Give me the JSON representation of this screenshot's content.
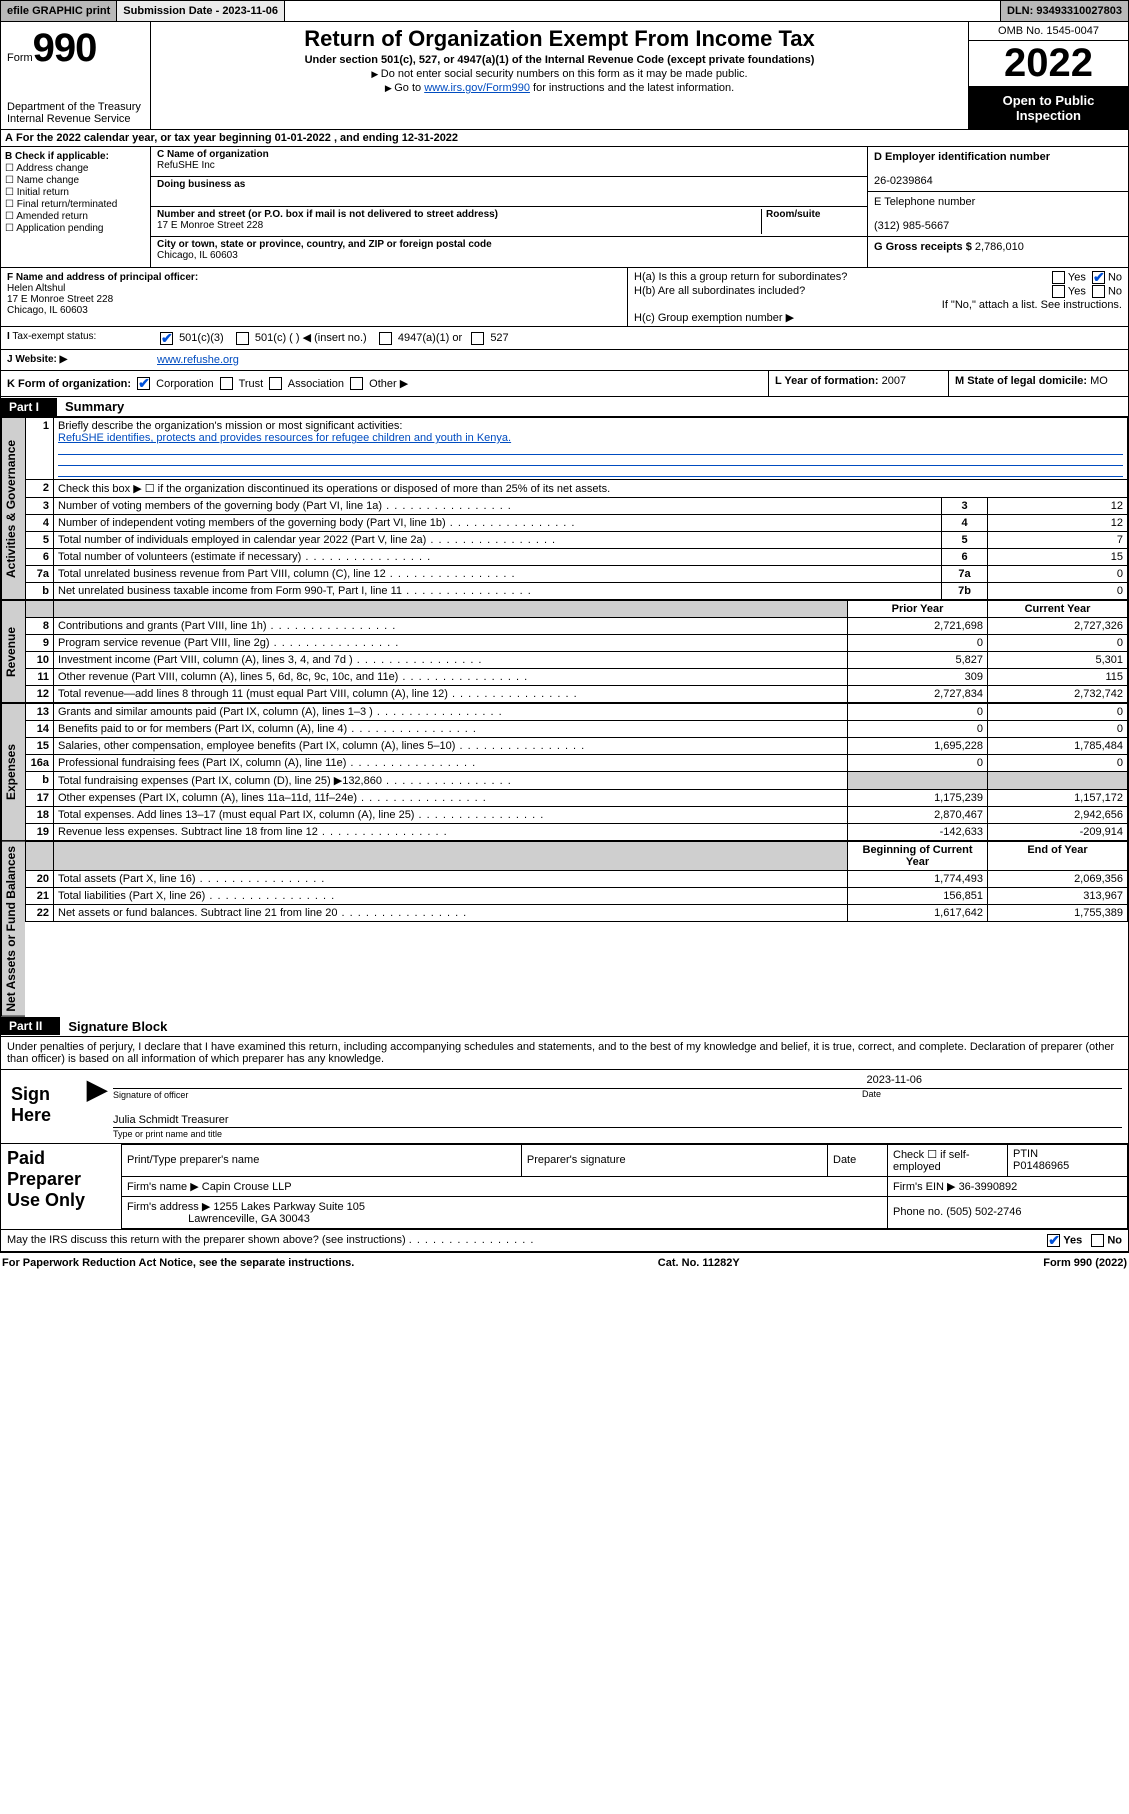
{
  "topbar": {
    "efile": "efile GRAPHIC print",
    "subdate_label": "Submission Date - 2023-11-06",
    "dln": "DLN: 93493310027803"
  },
  "header": {
    "form_prefix": "Form",
    "form_num": "990",
    "dept": "Department of the Treasury",
    "irs": "Internal Revenue Service",
    "title": "Return of Organization Exempt From Income Tax",
    "sub1": "Under section 501(c), 527, or 4947(a)(1) of the Internal Revenue Code (except private foundations)",
    "sub2": "Do not enter social security numbers on this form as it may be made public.",
    "sub3_pre": "Go to ",
    "sub3_link": "www.irs.gov/Form990",
    "sub3_post": " for instructions and the latest information.",
    "omb": "OMB No. 1545-0047",
    "year": "2022",
    "open": "Open to Public Inspection"
  },
  "A": {
    "text": "For the 2022 calendar year, or tax year beginning 01-01-2022   , and ending 12-31-2022"
  },
  "B": {
    "label": "B Check if applicable:",
    "items": [
      "Address change",
      "Name change",
      "Initial return",
      "Final return/terminated",
      "Amended return",
      "Application pending"
    ]
  },
  "C": {
    "name_lab": "C Name of organization",
    "name": "RefuSHE Inc",
    "dba_lab": "Doing business as",
    "addr_lab": "Number and street (or P.O. box if mail is not delivered to street address)",
    "room_lab": "Room/suite",
    "addr": "17 E Monroe Street 228",
    "city_lab": "City or town, state or province, country, and ZIP or foreign postal code",
    "city": "Chicago, IL  60603"
  },
  "D": {
    "lab": "D Employer identification number",
    "val": "26-0239864"
  },
  "E": {
    "lab": "E Telephone number",
    "val": "(312) 985-5667"
  },
  "G": {
    "lab": "G Gross receipts $",
    "val": "2,786,010"
  },
  "F": {
    "lab": "F  Name and address of principal officer:",
    "name": "Helen Altshul",
    "addr1": "17 E Monroe Street 228",
    "addr2": "Chicago, IL  60603"
  },
  "H": {
    "a_lab": "H(a)  Is this a group return for subordinates?",
    "b_lab": "H(b)  Are all subordinates included?",
    "b_note": "If \"No,\" attach a list. See instructions.",
    "c_lab": "H(c)  Group exemption number ▶",
    "yes": "Yes",
    "no": "No"
  },
  "I": {
    "lab": "Tax-exempt status:",
    "opt1": "501(c)(3)",
    "opt2": "501(c) (  ) ◀ (insert no.)",
    "opt3": "4947(a)(1) or",
    "opt4": "527"
  },
  "J": {
    "lab": "Website: ▶",
    "val": "www.refushe.org"
  },
  "K": {
    "lab": "K Form of organization:",
    "o1": "Corporation",
    "o2": "Trust",
    "o3": "Association",
    "o4": "Other ▶"
  },
  "L": {
    "lab": "L Year of formation:",
    "val": "2007"
  },
  "M": {
    "lab": "M State of legal domicile:",
    "val": "MO"
  },
  "part1": {
    "bar": "Part I",
    "title": "Summary",
    "l1_lab": "Briefly describe the organization's mission or most significant activities:",
    "l1_val": "RefuSHE identifies, protects and provides resources for refugee children and youth in Kenya.",
    "l2": "Check this box ▶ ☐  if the organization discontinued its operations or disposed of more than 25% of its net assets.",
    "rows_ag": [
      {
        "n": "3",
        "t": "Number of voting members of the governing body (Part VI, line 1a)",
        "c": "3",
        "v": "12"
      },
      {
        "n": "4",
        "t": "Number of independent voting members of the governing body (Part VI, line 1b)",
        "c": "4",
        "v": "12"
      },
      {
        "n": "5",
        "t": "Total number of individuals employed in calendar year 2022 (Part V, line 2a)",
        "c": "5",
        "v": "7"
      },
      {
        "n": "6",
        "t": "Total number of volunteers (estimate if necessary)",
        "c": "6",
        "v": "15"
      },
      {
        "n": "7a",
        "t": "Total unrelated business revenue from Part VIII, column (C), line 12",
        "c": "7a",
        "v": "0"
      },
      {
        "n": "b",
        "t": "Net unrelated business taxable income from Form 990-T, Part I, line 11",
        "c": "7b",
        "v": "0"
      }
    ],
    "hdr_prior": "Prior Year",
    "hdr_curr": "Current Year",
    "rows_rev": [
      {
        "n": "8",
        "t": "Contributions and grants (Part VIII, line 1h)",
        "p": "2,721,698",
        "c": "2,727,326"
      },
      {
        "n": "9",
        "t": "Program service revenue (Part VIII, line 2g)",
        "p": "0",
        "c": "0"
      },
      {
        "n": "10",
        "t": "Investment income (Part VIII, column (A), lines 3, 4, and 7d )",
        "p": "5,827",
        "c": "5,301"
      },
      {
        "n": "11",
        "t": "Other revenue (Part VIII, column (A), lines 5, 6d, 8c, 9c, 10c, and 11e)",
        "p": "309",
        "c": "115"
      },
      {
        "n": "12",
        "t": "Total revenue—add lines 8 through 11 (must equal Part VIII, column (A), line 12)",
        "p": "2,727,834",
        "c": "2,732,742"
      }
    ],
    "rows_exp": [
      {
        "n": "13",
        "t": "Grants and similar amounts paid (Part IX, column (A), lines 1–3 )",
        "p": "0",
        "c": "0"
      },
      {
        "n": "14",
        "t": "Benefits paid to or for members (Part IX, column (A), line 4)",
        "p": "0",
        "c": "0"
      },
      {
        "n": "15",
        "t": "Salaries, other compensation, employee benefits (Part IX, column (A), lines 5–10)",
        "p": "1,695,228",
        "c": "1,785,484"
      },
      {
        "n": "16a",
        "t": "Professional fundraising fees (Part IX, column (A), line 11e)",
        "p": "0",
        "c": "0"
      },
      {
        "n": "b",
        "t": "Total fundraising expenses (Part IX, column (D), line 25) ▶132,860",
        "p": "",
        "c": "",
        "gray": true
      },
      {
        "n": "17",
        "t": "Other expenses (Part IX, column (A), lines 11a–11d, 11f–24e)",
        "p": "1,175,239",
        "c": "1,157,172"
      },
      {
        "n": "18",
        "t": "Total expenses. Add lines 13–17 (must equal Part IX, column (A), line 25)",
        "p": "2,870,467",
        "c": "2,942,656"
      },
      {
        "n": "19",
        "t": "Revenue less expenses. Subtract line 18 from line 12",
        "p": "-142,633",
        "c": "-209,914"
      }
    ],
    "hdr_boy": "Beginning of Current Year",
    "hdr_eoy": "End of Year",
    "rows_na": [
      {
        "n": "20",
        "t": "Total assets (Part X, line 16)",
        "p": "1,774,493",
        "c": "2,069,356"
      },
      {
        "n": "21",
        "t": "Total liabilities (Part X, line 26)",
        "p": "156,851",
        "c": "313,967"
      },
      {
        "n": "22",
        "t": "Net assets or fund balances. Subtract line 21 from line 20",
        "p": "1,617,642",
        "c": "1,755,389"
      }
    ],
    "tab_ag": "Activities & Governance",
    "tab_rev": "Revenue",
    "tab_exp": "Expenses",
    "tab_na": "Net Assets or Fund Balances"
  },
  "part2": {
    "bar": "Part II",
    "title": "Signature Block",
    "decl": "Under penalties of perjury, I declare that I have examined this return, including accompanying schedules and statements, and to the best of my knowledge and belief, it is true, correct, and complete. Declaration of preparer (other than officer) is based on all information of which preparer has any knowledge.",
    "sign_here": "Sign Here",
    "sig_of": "Signature of officer",
    "date_lab": "Date",
    "date_val": "2023-11-06",
    "name_title": "Julia Schmidt Treasurer",
    "type_name": "Type or print name and title",
    "paid": "Paid Preparer Use Only",
    "pt_name": "Print/Type preparer's name",
    "pt_sig": "Preparer's signature",
    "pt_date": "Date",
    "pt_chk": "Check ☐ if self-employed",
    "ptin_lab": "PTIN",
    "ptin": "P01486965",
    "firm_name_lab": "Firm's name   ▶",
    "firm_name": "Capin Crouse LLP",
    "firm_ein_lab": "Firm's EIN ▶",
    "firm_ein": "36-3990892",
    "firm_addr_lab": "Firm's address ▶",
    "firm_addr1": "1255 Lakes Parkway Suite 105",
    "firm_addr2": "Lawrenceville, GA  30043",
    "phone_lab": "Phone no.",
    "phone": "(505) 502-2746",
    "discuss": "May the IRS discuss this return with the preparer shown above? (see instructions)",
    "yes": "Yes",
    "no": "No"
  },
  "footer": {
    "l": "For Paperwork Reduction Act Notice, see the separate instructions.",
    "c": "Cat. No. 11282Y",
    "r": "Form 990 (2022)"
  }
}
